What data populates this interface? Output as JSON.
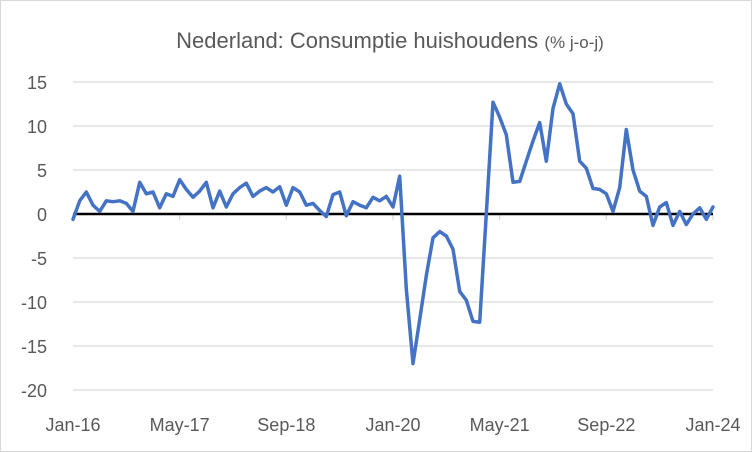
{
  "chart_data": {
    "type": "line",
    "title": "Nederland: Consumptie huishoudens",
    "title_suffix": "(% j-o-j)",
    "xlabel": "",
    "ylabel": "",
    "ylim": [
      -20,
      15
    ],
    "yticks": [
      "15",
      "10",
      "5",
      "0",
      "-5",
      "-10",
      "-15",
      "-20"
    ],
    "ytick_values": [
      15,
      10,
      5,
      0,
      -5,
      -10,
      -15,
      -20
    ],
    "xticks": [
      "Jan-16",
      "May-17",
      "Sep-18",
      "Jan-20",
      "May-21",
      "Sep-22",
      "Jan-24"
    ],
    "xtick_months": [
      0,
      16,
      32,
      48,
      64,
      80,
      96
    ],
    "grid": true,
    "legend": "none",
    "series": [
      {
        "name": "Consumptie huishoudens",
        "color": "#4472c4",
        "start": "Jan-16",
        "values": [
          -0.6,
          1.5,
          2.5,
          1.0,
          0.3,
          1.5,
          1.4,
          1.5,
          1.2,
          0.3,
          3.6,
          2.3,
          2.5,
          0.7,
          2.3,
          2.0,
          3.9,
          2.8,
          1.9,
          2.6,
          3.6,
          0.7,
          2.6,
          0.8,
          2.3,
          3.0,
          3.5,
          2.0,
          2.6,
          3.0,
          2.5,
          3.1,
          1.0,
          3.0,
          2.5,
          1.0,
          1.2,
          0.4,
          -0.3,
          2.2,
          2.5,
          -0.2,
          1.4,
          1.0,
          0.7,
          1.9,
          1.5,
          2.0,
          0.8,
          4.3,
          -8.5,
          -17.0,
          -12.0,
          -7.0,
          -2.7,
          -2.0,
          -2.5,
          -4.0,
          -8.8,
          -9.8,
          -12.2,
          -12.3,
          0.0,
          12.7,
          11.0,
          9.0,
          3.6,
          3.7,
          6.0,
          8.3,
          10.4,
          6.0,
          12.0,
          14.8,
          12.5,
          11.4,
          6.0,
          5.2,
          2.9,
          2.8,
          2.3,
          0.3,
          3.0,
          9.6,
          5.0,
          2.6,
          2.0,
          -1.3,
          0.8,
          1.3,
          -1.3,
          0.3,
          -1.2,
          0.0,
          0.7,
          -0.6,
          0.8
        ]
      }
    ]
  }
}
